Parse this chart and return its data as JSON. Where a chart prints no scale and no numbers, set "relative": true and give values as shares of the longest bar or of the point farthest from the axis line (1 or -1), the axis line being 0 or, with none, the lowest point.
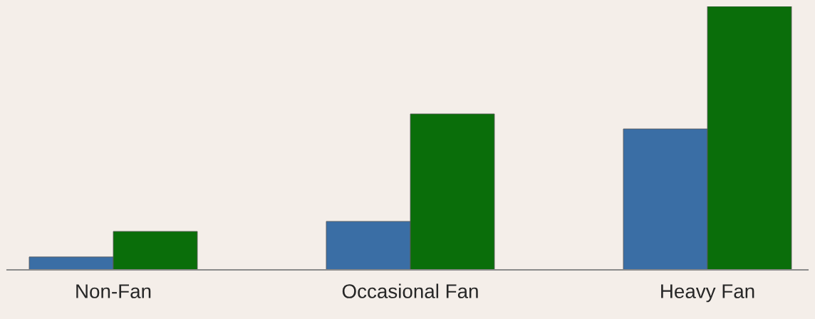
{
  "chart_data": {
    "type": "bar",
    "relative": true,
    "categories": [
      "Non-Fan",
      "Occasional Fan",
      "Heavy Fan"
    ],
    "series": [
      {
        "color": "#3a6ea5",
        "values": [
          0.049,
          0.184,
          0.535
        ]
      },
      {
        "color": "#0a6e0a",
        "values": [
          0.146,
          0.592,
          1.0
        ]
      }
    ],
    "grid": false,
    "legend": false
  }
}
